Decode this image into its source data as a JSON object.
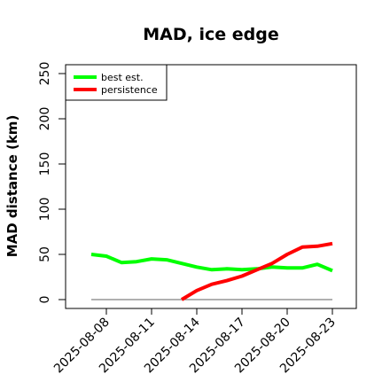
{
  "chart_data": {
    "type": "line",
    "title": "MAD, ice edge",
    "xlabel": "",
    "ylabel": "MAD distance (km)",
    "ylim": [
      0,
      250
    ],
    "y_ticks": [
      0,
      50,
      100,
      150,
      200,
      250
    ],
    "x_tick_labels": [
      "2025-08-08",
      "2025-08-11",
      "2025-08-14",
      "2025-08-17",
      "2025-08-20",
      "2025-08-23"
    ],
    "grid": false,
    "legend_position": "top-left",
    "series": [
      {
        "name": "best est.",
        "color": "#00ff00",
        "points": [
          {
            "x": "2025-08-07",
            "y": 50
          },
          {
            "x": "2025-08-08",
            "y": 48
          },
          {
            "x": "2025-08-09",
            "y": 41
          },
          {
            "x": "2025-08-10",
            "y": 42
          },
          {
            "x": "2025-08-11",
            "y": 45
          },
          {
            "x": "2025-08-12",
            "y": 44
          },
          {
            "x": "2025-08-13",
            "y": 40
          },
          {
            "x": "2025-08-14",
            "y": 36
          },
          {
            "x": "2025-08-15",
            "y": 33
          },
          {
            "x": "2025-08-16",
            "y": 34
          },
          {
            "x": "2025-08-17",
            "y": 33
          },
          {
            "x": "2025-08-18",
            "y": 34
          },
          {
            "x": "2025-08-19",
            "y": 36
          },
          {
            "x": "2025-08-20",
            "y": 35
          },
          {
            "x": "2025-08-21",
            "y": 35
          },
          {
            "x": "2025-08-22",
            "y": 39
          },
          {
            "x": "2025-08-23",
            "y": 32
          }
        ]
      },
      {
        "name": "persistence",
        "color": "#ff0000",
        "points": [
          {
            "x": "2025-08-13",
            "y": 0
          },
          {
            "x": "2025-08-14",
            "y": 10
          },
          {
            "x": "2025-08-15",
            "y": 17
          },
          {
            "x": "2025-08-16",
            "y": 21
          },
          {
            "x": "2025-08-17",
            "y": 26
          },
          {
            "x": "2025-08-18",
            "y": 33
          },
          {
            "x": "2025-08-19",
            "y": 40
          },
          {
            "x": "2025-08-20",
            "y": 50
          },
          {
            "x": "2025-08-21",
            "y": 58
          },
          {
            "x": "2025-08-22",
            "y": 59
          },
          {
            "x": "2025-08-23",
            "y": 62
          }
        ]
      }
    ],
    "reference_line": {
      "color": "#808080",
      "x_start": "2025-08-07",
      "x_end": "2025-08-23",
      "y": 0
    }
  }
}
